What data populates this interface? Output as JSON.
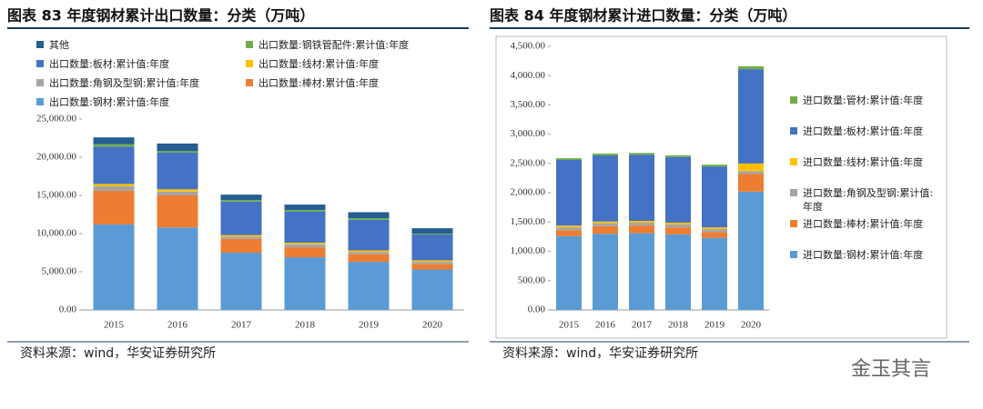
{
  "watermark": "金玉其言",
  "chart_data": [
    {
      "type": "bar",
      "stacked": true,
      "title": "图表 83  年度钢材累计出口数量：分类（万吨）",
      "source": "资料来源：wind，华安证券研究所",
      "categories": [
        "2015",
        "2016",
        "2017",
        "2018",
        "2019",
        "2020"
      ],
      "ylim": [
        0,
        25000
      ],
      "yticks": [
        {
          "value": 0,
          "label": "0.00"
        },
        {
          "value": 5000,
          "label": "5,000.00"
        },
        {
          "value": 10000,
          "label": "10,000.00"
        },
        {
          "value": 15000,
          "label": "15,000.00"
        },
        {
          "value": 20000,
          "label": "20,000.00"
        },
        {
          "value": 25000,
          "label": "25,000.00"
        }
      ],
      "legend": "top",
      "series": [
        {
          "name": "出口数量:钢材:累计值:年度",
          "color": "#5b9bd5",
          "values": [
            11200,
            10800,
            7500,
            6900,
            6300,
            5300
          ]
        },
        {
          "name": "出口数量:棒材:累计值:年度",
          "color": "#ed7d31",
          "values": [
            4400,
            4200,
            1800,
            1300,
            1000,
            700
          ]
        },
        {
          "name": "出口数量:角钢及型钢:累计值:年度",
          "color": "#a5a5a5",
          "values": [
            600,
            500,
            300,
            400,
            300,
            300
          ]
        },
        {
          "name": "出口数量:线材:累计值:年度",
          "color": "#ffc000",
          "values": [
            300,
            300,
            200,
            200,
            200,
            200
          ]
        },
        {
          "name": "出口数量:板材:累计值:年度",
          "color": "#4472c4",
          "values": [
            4900,
            4800,
            4400,
            4100,
            4000,
            3400
          ]
        },
        {
          "name": "出口数量:钢铁管配件:累计值:年度",
          "color": "#70ad47",
          "values": [
            300,
            200,
            200,
            200,
            200,
            100
          ]
        },
        {
          "name": "其他",
          "color": "#255e91",
          "values": [
            900,
            1000,
            700,
            700,
            800,
            700
          ]
        }
      ]
    },
    {
      "type": "bar",
      "stacked": true,
      "title": "图表 84  年度钢材累计进口数量：分类（万吨）",
      "source": "资料来源：wind，华安证券研究所",
      "categories": [
        "2015",
        "2016",
        "2017",
        "2018",
        "2019",
        "2020"
      ],
      "ylim": [
        0,
        4500
      ],
      "yticks": [
        {
          "value": 0,
          "label": "0.00"
        },
        {
          "value": 500,
          "label": "500.00"
        },
        {
          "value": 1000,
          "label": "1,000.00"
        },
        {
          "value": 1500,
          "label": "1,500.00"
        },
        {
          "value": 2000,
          "label": "2,000.00"
        },
        {
          "value": 2500,
          "label": "2,500.00"
        },
        {
          "value": 3000,
          "label": "3,000.00"
        },
        {
          "value": 3500,
          "label": "3,500.00"
        },
        {
          "value": 4000,
          "label": "4,000.00"
        },
        {
          "value": 4500,
          "label": "4,500.00"
        }
      ],
      "legend": "right",
      "series": [
        {
          "name": "进口数量:钢材:累计值:年度",
          "color": "#5b9bd5",
          "values": [
            1260,
            1300,
            1310,
            1290,
            1230,
            2020
          ]
        },
        {
          "name": "进口数量:棒材:累计值:年度",
          "color": "#ed7d31",
          "values": [
            100,
            130,
            130,
            120,
            100,
            300
          ]
        },
        {
          "name": "进口数量:角钢及型钢:累计值:年度",
          "color": "#a5a5a5",
          "values": [
            50,
            50,
            50,
            50,
            50,
            50
          ]
        },
        {
          "name": "进口数量:线材:累计值:年度",
          "color": "#ffc000",
          "values": [
            30,
            30,
            30,
            30,
            30,
            130
          ]
        },
        {
          "name": "进口数量:板材:累计值:年度",
          "color": "#4472c4",
          "values": [
            1120,
            1130,
            1130,
            1120,
            1040,
            1610
          ]
        },
        {
          "name": "进口数量:管材:累计值:年度",
          "color": "#70ad47",
          "values": [
            30,
            30,
            30,
            30,
            30,
            50
          ]
        }
      ]
    }
  ]
}
